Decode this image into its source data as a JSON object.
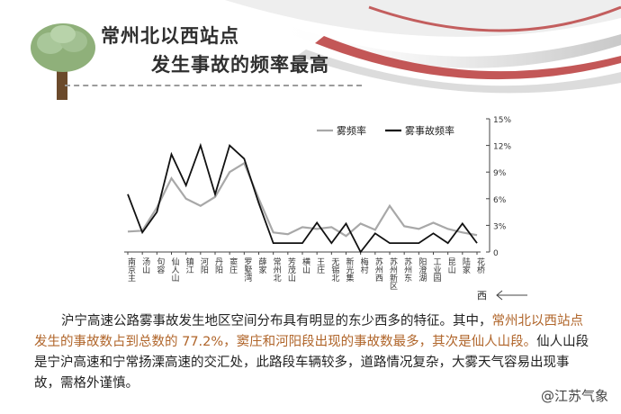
{
  "header": {
    "title_line1": "常州北以西站点",
    "title_line2": "发生事故的频率最高"
  },
  "chart_data": {
    "type": "line",
    "categories": [
      "南京主",
      "汤山",
      "句容",
      "仙人山",
      "镇江",
      "河阳",
      "丹阳",
      "窦庄",
      "罗墅湾",
      "薛家",
      "常州北",
      "芳茂山",
      "横山",
      "王庄",
      "无锡北",
      "新光集",
      "梅村",
      "苏州西",
      "苏州新区",
      "苏州东",
      "阳澄湖",
      "工业园",
      "昆山",
      "陆家",
      "花桥"
    ],
    "series": [
      {
        "name": "雾频率",
        "color": "#a8a8a8",
        "values": [
          2.3,
          2.4,
          5.0,
          8.3,
          6.0,
          5.2,
          6.2,
          9.0,
          10.0,
          6.0,
          2.2,
          2.0,
          2.8,
          2.6,
          2.8,
          1.8,
          3.2,
          2.5,
          5.2,
          2.9,
          2.6,
          3.3,
          2.6,
          2.2,
          1.9
        ]
      },
      {
        "name": "雾事故频率",
        "color": "#111111",
        "values": [
          6.5,
          2.2,
          4.5,
          11.0,
          7.5,
          12.0,
          6.5,
          12.0,
          10.5,
          5.5,
          1.0,
          1.0,
          1.0,
          3.3,
          1.0,
          3.2,
          0.0,
          2.1,
          1.0,
          1.0,
          1.0,
          2.1,
          1.0,
          3.2,
          1.0
        ]
      }
    ],
    "ylim": [
      0,
      15
    ],
    "yticks": [
      "0",
      "3%",
      "6%",
      "9%",
      "12%",
      "15%"
    ],
    "direction_label": "西"
  },
  "paragraph": {
    "part1": "沪宁高速公路雾事故发生地区空间分布具有明显的东少西多的特征。其中，",
    "hl1": "常州北以西站点发生的事故数占到总数的 77.2%，窦庄和河阳段出现的事故数最多，其次是仙人山段。",
    "part2": "仙人山段是宁沪高速和宁常扬溧高速的交汇处，此路段车辆较多，道路情况复杂，大雾天气容易出现事故，需格外谨慎。"
  },
  "watermark": "@江苏气象"
}
